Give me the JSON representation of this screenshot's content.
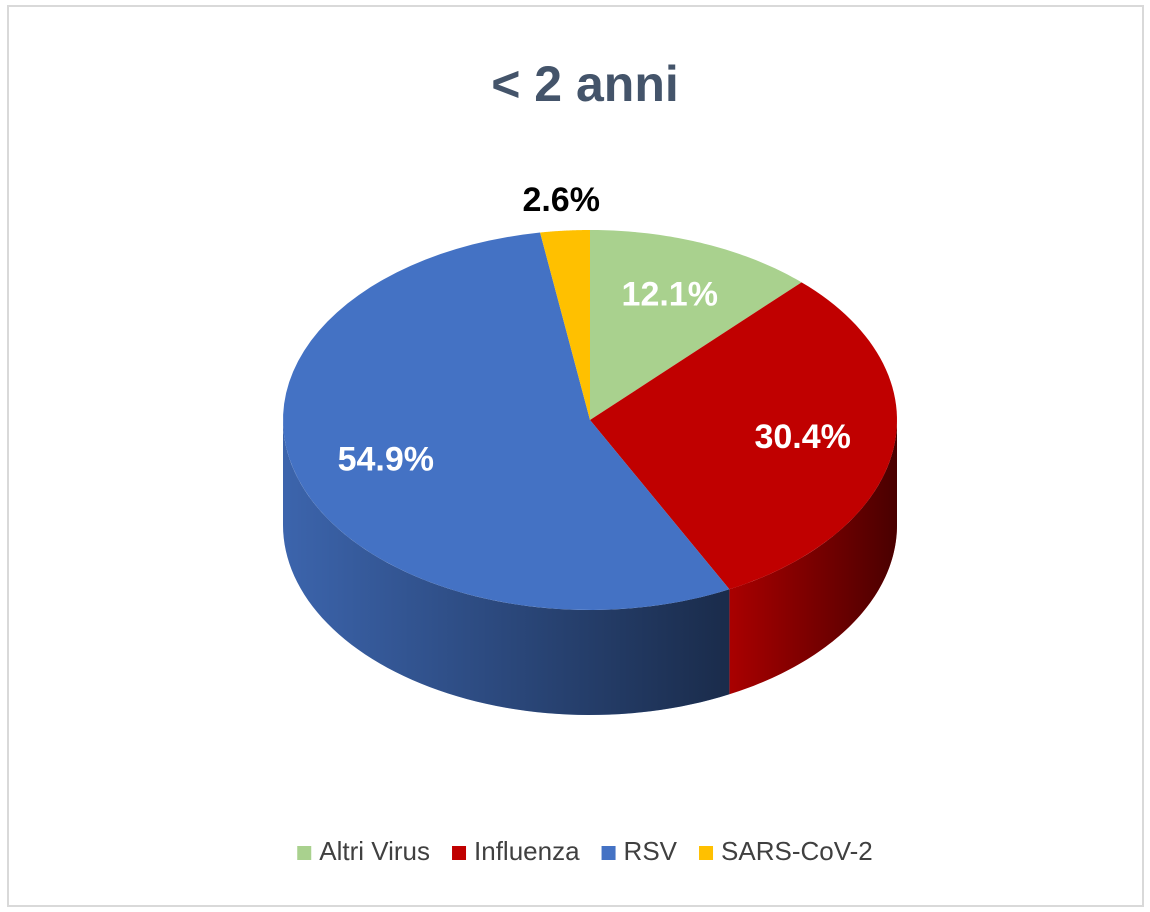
{
  "chart_data": {
    "type": "pie3d",
    "title": "< 2 anni",
    "categories": [
      "Altri Virus",
      "Influenza",
      "RSV",
      "SARS-CoV-2"
    ],
    "values": [
      12.1,
      30.4,
      54.9,
      2.6
    ],
    "value_labels": [
      "12.1%",
      "30.4%",
      "54.9%",
      "2.6%"
    ],
    "colors": [
      "#a9d18e",
      "#c00000",
      "#4472c4",
      "#ffc000"
    ],
    "legend": "bottom"
  }
}
